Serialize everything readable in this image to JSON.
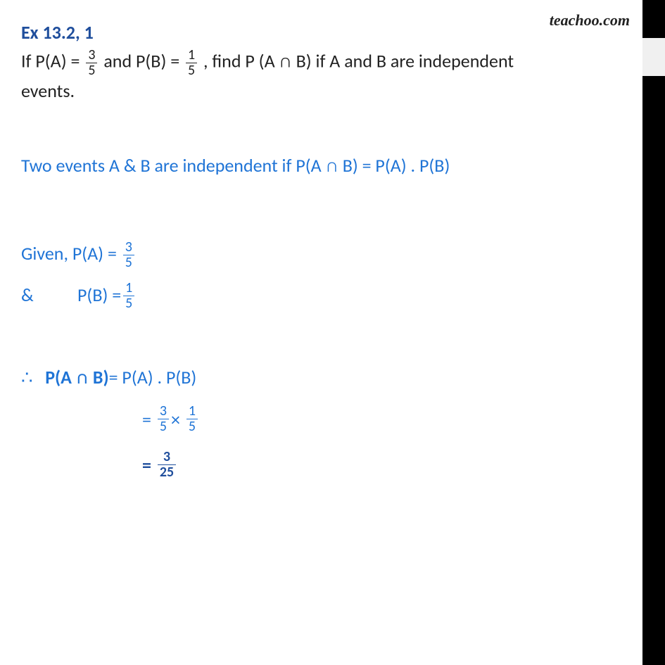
{
  "watermark": "teachoo.com",
  "title": "Ex 13.2, 1",
  "question": {
    "line1_pre": "If  P(A) = ",
    "frac1_num": "3",
    "frac1_den": "5",
    "line1_mid": " and P(B) = ",
    "frac2_num": "1",
    "frac2_den": "5",
    "line1_post": " , find P (A ∩ B) if A and B are independent",
    "line2": "events."
  },
  "rule": "Two events A & B are independent if P(A ∩ B) = P(A) . P(B)",
  "given": {
    "pa_label": "Given, P(A) = ",
    "pa_num": "3",
    "pa_den": "5",
    "amp": "&",
    "pb_label": "P(B) = ",
    "pb_num": "1",
    "pb_den": "5"
  },
  "solution": {
    "therefore": "∴",
    "lhs": "P(A ∩ B)",
    "eq1_rhs": " = P(A) . P(B)",
    "eq2_eq": "= ",
    "eq2_f1_num": "3",
    "eq2_f1_den": "5",
    "eq2_times": " × ",
    "eq2_f2_num": "1",
    "eq2_f2_den": "5",
    "eq3_eq": "= ",
    "eq3_num": "3",
    "eq3_den": "25"
  },
  "colors": {
    "title": "#1f4e9c",
    "question_text": "#222222",
    "solution_text": "#1f74d6",
    "background": "#ffffff"
  }
}
